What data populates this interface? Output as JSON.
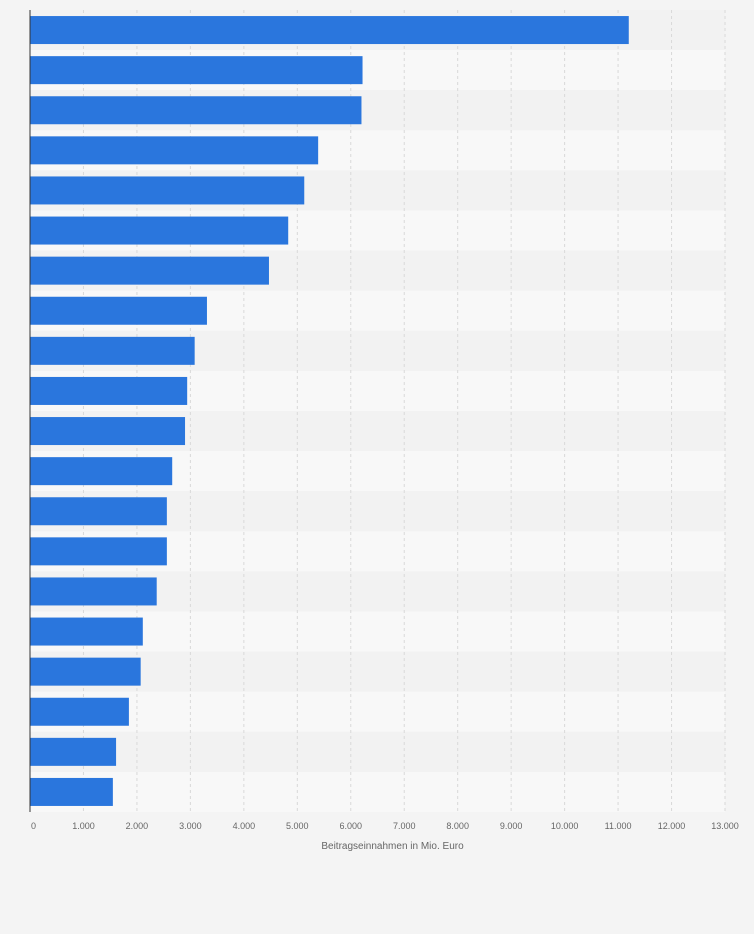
{
  "chart_data": {
    "type": "bar",
    "orientation": "horizontal",
    "categories": [
      "",
      "",
      "",
      "",
      "",
      "",
      "",
      "",
      "",
      "",
      "",
      "",
      "",
      "",
      "",
      "",
      "",
      "",
      "",
      ""
    ],
    "values": [
      11200,
      6220,
      6200,
      5390,
      5130,
      4830,
      4470,
      3310,
      3080,
      2940,
      2900,
      2660,
      2560,
      2560,
      2370,
      2110,
      2070,
      1850,
      1610,
      1550
    ],
    "xlabel": "Beitragseinnahmen in Mio. Euro",
    "ylabel": "",
    "xlim": [
      0,
      13000
    ],
    "xticks": [
      0,
      1000,
      2000,
      3000,
      4000,
      5000,
      6000,
      7000,
      8000,
      9000,
      10000,
      11000,
      12000,
      13000
    ],
    "tick_labels": [
      "0",
      "1.000",
      "2.000",
      "3.000",
      "4.000",
      "5.000",
      "6.000",
      "7.000",
      "8.000",
      "9.000",
      "10.000",
      "11.000",
      "12.000",
      "13.000"
    ],
    "grid": true,
    "colors": {
      "bar": "#2a76dd",
      "band_odd": "#f2f2f2",
      "band_even": "#f8f8f8",
      "grid": "#d9d9d9",
      "axis": "#333333",
      "text": "#666666"
    }
  }
}
